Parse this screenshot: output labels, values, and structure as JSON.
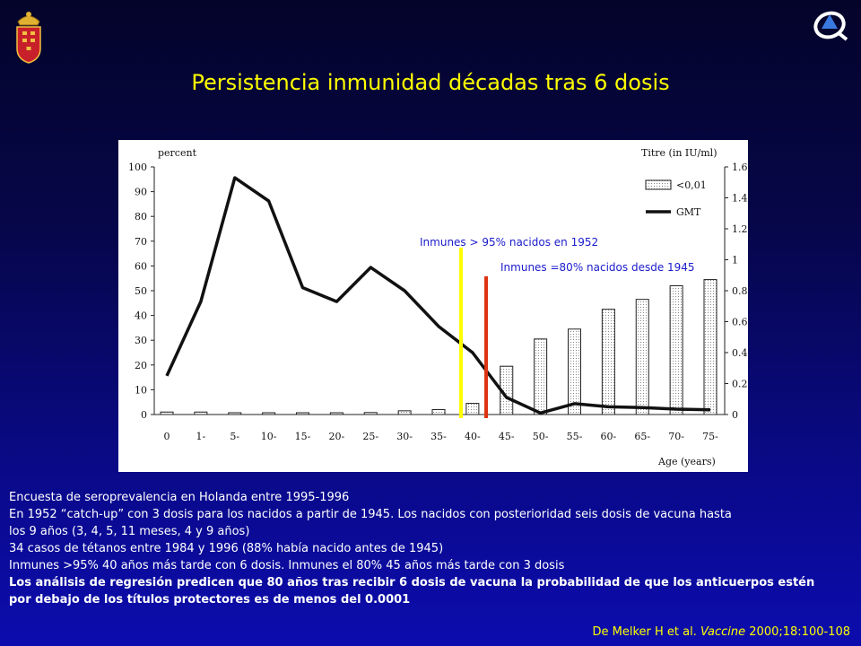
{
  "slide": {
    "title": "Persistencia inmunidad décadas tras 6 dosis",
    "crest_icon": "region-coat-of-arms-icon",
    "logo_icon": "health-service-logo-icon",
    "colors": {
      "title": "#ffff00",
      "annotation": "#1a1acc",
      "yellow_marker": "#ffff00",
      "red_marker": "#dd3311"
    }
  },
  "chart_data": {
    "type": "bar",
    "title": "",
    "ylabel_left": "percent",
    "ylabel_right": "Titre (in IU/ml)",
    "xlabel": "Age (years)",
    "categories": [
      "0",
      "1-",
      "5-",
      "10-",
      "15-",
      "20-",
      "25-",
      "30-",
      "35-",
      "40-",
      "45-",
      "50-",
      "55-",
      "60-",
      "65-",
      "70-",
      "75-"
    ],
    "ylim": [
      0,
      100
    ],
    "y2lim": [
      0,
      1.6
    ],
    "yticks": [
      0,
      10,
      20,
      30,
      40,
      50,
      60,
      70,
      80,
      90,
      100
    ],
    "y2ticks": [
      "0",
      "0.2",
      "0.4",
      "0.6",
      "0.8",
      "1",
      "1.2",
      "1.4",
      "1.6"
    ],
    "legend_position": "top-right",
    "series": [
      {
        "name": "<0,01",
        "kind": "bar",
        "axis": "left",
        "values": [
          1,
          1,
          0.3,
          0.3,
          0.5,
          0.7,
          0.8,
          1.5,
          2,
          4.5,
          19.5,
          30.5,
          34.5,
          42.5,
          46.5,
          52,
          54.5
        ]
      },
      {
        "name": "GMT",
        "kind": "line",
        "axis": "right",
        "values": [
          0.25,
          0.73,
          1.53,
          1.38,
          0.82,
          0.73,
          0.95,
          0.8,
          0.57,
          0.4,
          0.11,
          0.01,
          0.07,
          0.05,
          0.045,
          0.035,
          0.03
        ]
      }
    ],
    "annotations": [
      {
        "text": "Inmunes > 95% nacidos en 1952",
        "marker_age": 43.3,
        "color": "#ffff00"
      },
      {
        "text": "Inmunes =80% nacidos desde 1945",
        "marker_age": 47,
        "color": "#dd3311"
      }
    ]
  },
  "notes": {
    "lines": [
      "Encuesta de seroprevalencia en Holanda entre 1995-1996",
      "En 1952 “catch-up” con 3 dosis para los nacidos a partir de 1945. Los nacidos con posterioridad seis dosis de vacuna hasta",
      "los 9 años (3, 4, 5, 11 meses, 4 y 9 años)",
      "34 casos de tétanos entre 1984 y 1996 (88% había nacido antes de 1945)",
      "Inmunes >95% 40 años más tarde con 6 dosis. Inmunes el 80% 45 años más tarde con 3 dosis"
    ],
    "bold_lines": [
      "Los análisis de regresión predicen que 80 años tras recibir 6 dosis de vacuna la probabilidad de que los anticuerpos estén",
      "por debajo de los títulos protectores es de menos del 0.0001"
    ]
  },
  "citation": {
    "authors": "De Melker H et al. ",
    "journal": "Vaccine",
    "ref": " 2000;18:100-108"
  }
}
